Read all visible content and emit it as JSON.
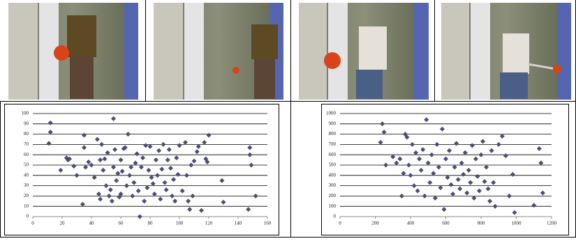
{
  "chart_data": [
    {
      "type": "scatter",
      "color": "#4b4b7d",
      "grid": true,
      "x": [
        12,
        12,
        11,
        19,
        23,
        24,
        25,
        28,
        30,
        34,
        35,
        35,
        36,
        38,
        40,
        42,
        44,
        45,
        46,
        46,
        47,
        48,
        49,
        50,
        51,
        52,
        53,
        54,
        55,
        55,
        56,
        57,
        58,
        59,
        60,
        60,
        61,
        62,
        63,
        64,
        65,
        66,
        67,
        68,
        69,
        70,
        71,
        72,
        73,
        74,
        75,
        76,
        77,
        78,
        79,
        80,
        81,
        82,
        83,
        84,
        85,
        86,
        87,
        88,
        89,
        90,
        91,
        92,
        93,
        94,
        95,
        96,
        97,
        98,
        99,
        100,
        102,
        104,
        105,
        106,
        107,
        108,
        109,
        110,
        112,
        113,
        115,
        117,
        118,
        119,
        120,
        129,
        130,
        148,
        148,
        149,
        147,
        152
      ],
      "values": [
        91,
        82,
        71,
        45,
        57,
        55,
        56,
        49,
        40,
        12,
        79,
        67,
        48,
        53,
        50,
        38,
        75,
        22,
        55,
        17,
        70,
        45,
        56,
        30,
        62,
        20,
        26,
        15,
        48,
        95,
        65,
        35,
        42,
        19,
        22,
        55,
        44,
        66,
        67,
        30,
        80,
        40,
        48,
        20,
        33,
        52,
        61,
        25,
        0,
        48,
        57,
        15,
        69,
        28,
        45,
        68,
        38,
        32,
        22,
        55,
        40,
        64,
        17,
        46,
        70,
        33,
        26,
        55,
        65,
        47,
        20,
        36,
        15,
        57,
        41,
        69,
        25,
        72,
        40,
        15,
        7,
        50,
        20,
        54,
        63,
        68,
        6,
        72,
        56,
        53,
        79,
        35,
        14,
        67,
        60,
        50,
        7,
        20
      ],
      "xlim": [
        0,
        160
      ],
      "xticks": [
        0,
        20,
        40,
        60,
        80,
        100,
        120,
        140,
        160
      ],
      "ylim": [
        0,
        100
      ],
      "yticks": [
        0,
        10,
        20,
        30,
        40,
        50,
        60,
        70,
        80,
        90,
        100
      ]
    },
    {
      "type": "scatter",
      "color": "#4b4b7d",
      "grid": true,
      "x": [
        230,
        240,
        250,
        260,
        300,
        320,
        340,
        350,
        360,
        370,
        380,
        390,
        400,
        410,
        420,
        430,
        440,
        450,
        460,
        470,
        480,
        490,
        500,
        510,
        520,
        530,
        540,
        550,
        560,
        570,
        580,
        590,
        600,
        610,
        620,
        630,
        640,
        650,
        660,
        670,
        680,
        690,
        700,
        710,
        720,
        730,
        740,
        750,
        760,
        770,
        780,
        790,
        800,
        810,
        820,
        830,
        840,
        850,
        860,
        870,
        880,
        900,
        920,
        940,
        960,
        980,
        990,
        1100,
        1130,
        1140,
        1150
      ],
      "values": [
        720,
        900,
        820,
        500,
        580,
        520,
        560,
        200,
        420,
        800,
        770,
        500,
        400,
        700,
        300,
        620,
        250,
        560,
        450,
        650,
        200,
        940,
        520,
        330,
        600,
        420,
        180,
        700,
        480,
        280,
        850,
        70,
        560,
        380,
        640,
        310,
        220,
        480,
        710,
        360,
        270,
        520,
        410,
        620,
        230,
        450,
        330,
        690,
        180,
        560,
        390,
        250,
        600,
        730,
        340,
        480,
        270,
        150,
        640,
        330,
        100,
        700,
        780,
        590,
        200,
        410,
        40,
        110,
        660,
        520,
        230
      ],
      "xlim": [
        0,
        1200
      ],
      "xticks": [
        0,
        200,
        400,
        600,
        800,
        1000,
        1200
      ],
      "ylim": [
        0,
        1000
      ],
      "yticks": [
        0,
        100,
        200,
        300,
        400,
        500,
        600,
        700,
        800,
        900,
        1000
      ]
    }
  ]
}
